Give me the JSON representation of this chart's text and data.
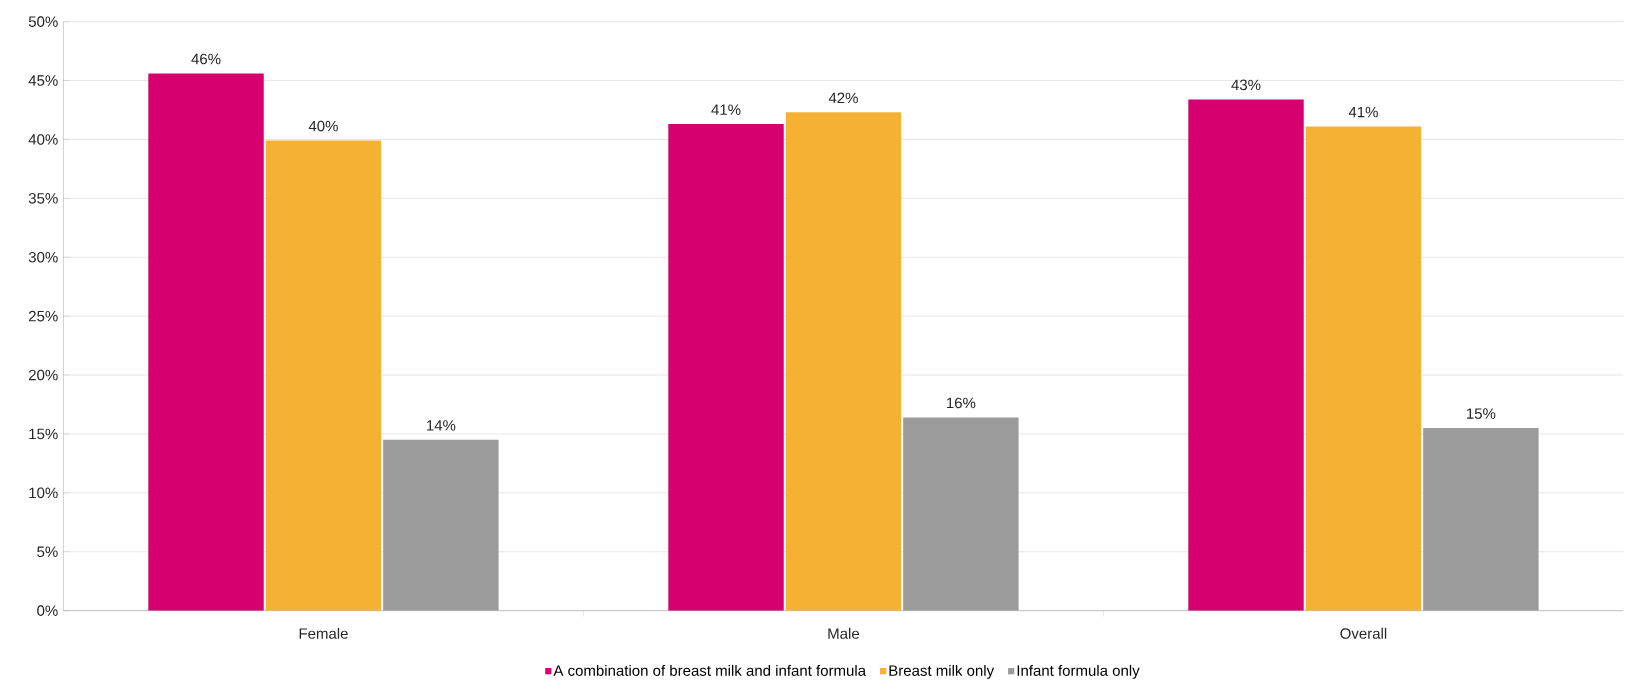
{
  "chart_data": {
    "type": "bar",
    "categories": [
      "Female",
      "Male",
      "Overall"
    ],
    "series": [
      {
        "name": "A combination of breast milk and infant formula",
        "color": "#d6006e",
        "values": [
          45.6,
          41.3,
          43.4
        ],
        "value_labels": [
          "46%",
          "41%",
          "43%"
        ]
      },
      {
        "name": "Breast milk only",
        "color": "#f5b133",
        "values": [
          39.9,
          42.3,
          41.1
        ],
        "value_labels": [
          "40%",
          "42%",
          "41%"
        ]
      },
      {
        "name": "Infant formula only",
        "color": "#9b9b9b",
        "values": [
          14.5,
          16.4,
          15.5
        ],
        "value_labels": [
          "14%",
          "16%",
          "15%"
        ]
      }
    ],
    "ylim": [
      0,
      50
    ],
    "yticks": [
      {
        "value": 0,
        "label": "0%"
      },
      {
        "value": 5,
        "label": "5%"
      },
      {
        "value": 10,
        "label": "10%"
      },
      {
        "value": 15,
        "label": "15%"
      },
      {
        "value": 20,
        "label": "20%"
      },
      {
        "value": 25,
        "label": "25%"
      },
      {
        "value": 30,
        "label": "30%"
      },
      {
        "value": 35,
        "label": "35%"
      },
      {
        "value": 40,
        "label": "40%"
      },
      {
        "value": 45,
        "label": "45%"
      },
      {
        "value": 50,
        "label": "50%"
      }
    ],
    "grid": "y",
    "legend": "bottom"
  }
}
